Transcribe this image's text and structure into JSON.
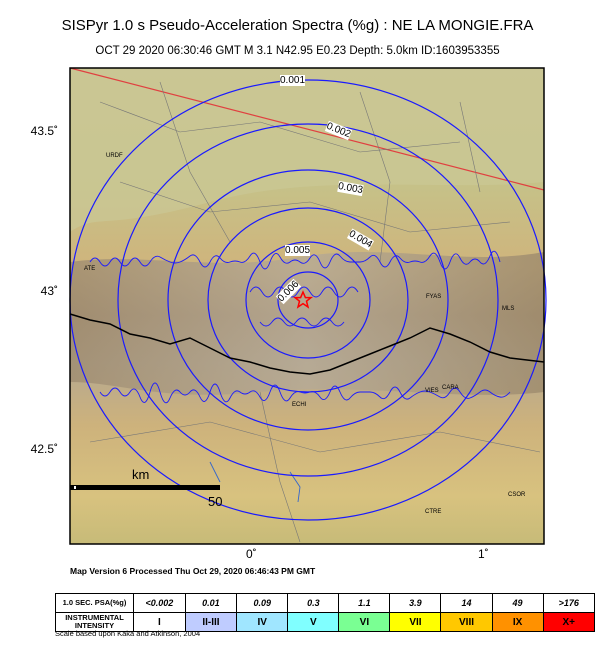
{
  "header": {
    "title": "SISPyr 1.0 s Pseudo-Acceleration Spectra (%g) : NE LA MONGIE.FRA",
    "subtitle": "OCT 29 2020 06:30:46  GMT   M 3.1    N42.95 E0.23   Depth: 5.0km   ID:1603953355"
  },
  "axes": {
    "lat_labels": [
      "43.5˚",
      "43˚",
      "42.5˚"
    ],
    "lon_labels": [
      "0˚",
      "1˚"
    ]
  },
  "contour_labels": [
    "0.001",
    "0.002",
    "0.003",
    "0.004",
    "0.005",
    "0.006"
  ],
  "place_labels": [
    "URDF",
    "ATE",
    "FYAS",
    "MLS",
    "VIES",
    "CARA",
    "ECHI",
    "CTRE",
    "CSOR"
  ],
  "scale_bar": {
    "unit_label": "km",
    "distance_label": "50"
  },
  "colors": {
    "contour": "#1a1aff",
    "border": "#000000",
    "fault_line": "#e04040",
    "epicenter": "#ff0000"
  },
  "footer": {
    "version_text": "Map Version 6 Processed Thu Oct 29, 2020 06:46:43 PM GMT",
    "scale_note": "Scale based upon Kaka and Atkinson, 2004"
  },
  "legend": {
    "psa_header": "1.0 SEC. PSA(%g)",
    "intensity_header": "INSTRUMENTAL INTENSITY",
    "psa_values": [
      "<0.002",
      "0.01",
      "0.09",
      "0.3",
      "1.1",
      "3.9",
      "14",
      "49",
      ">176"
    ],
    "intensities": [
      "I",
      "II-III",
      "IV",
      "V",
      "VI",
      "VII",
      "VIII",
      "IX",
      "X+"
    ],
    "colors": [
      "#ffffff",
      "#bfccff",
      "#a0e6ff",
      "#80ffff",
      "#7aff93",
      "#ffff00",
      "#ffc800",
      "#ff9100",
      "#ff0000"
    ]
  }
}
